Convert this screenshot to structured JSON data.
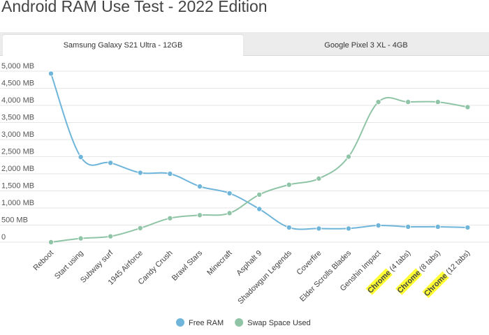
{
  "page": {
    "title": "Android RAM Use Test - 2022 Edition"
  },
  "tabs": [
    {
      "label": "Samsung Galaxy S21 Ultra - 12GB",
      "active": true
    },
    {
      "label": "Google Pixel 3 XL - 4GB",
      "active": false
    }
  ],
  "colors": {
    "free_ram": "#6fb5da",
    "swap": "#8fc4a6",
    "highlight": "#ffff33",
    "grid": "#e6e6e6"
  },
  "chart_data": {
    "type": "line",
    "title": "",
    "xlabel": "",
    "ylabel": "",
    "ylim": [
      0,
      5000
    ],
    "yticks": [
      0,
      500,
      1000,
      1500,
      2000,
      2500,
      3000,
      3500,
      4000,
      4500,
      5000
    ],
    "ytick_labels": [
      "0",
      "500 MB",
      "1,000 MB",
      "1,500 MB",
      "2,000 MB",
      "2,500 MB",
      "3,000 MB",
      "3,500 MB",
      "4,000 MB",
      "4,500 MB",
      "5,000 MB"
    ],
    "categories": [
      {
        "label": "Reboot"
      },
      {
        "label": "Start using"
      },
      {
        "label": "Subway surf"
      },
      {
        "label": "1945 Airforce"
      },
      {
        "label": "Candy Crush"
      },
      {
        "label": "Brawl Stars"
      },
      {
        "label": "Minecraft"
      },
      {
        "label": "Asphalt 9"
      },
      {
        "label": "Shadowgun Legends"
      },
      {
        "label": "Coverfire"
      },
      {
        "label": "Elder Scrolls Blades"
      },
      {
        "label": "Genshin Impact"
      },
      {
        "label": "(4 tabs)",
        "highlight": "Chrome"
      },
      {
        "label": "(8 tabs)",
        "highlight": "Chrome"
      },
      {
        "label": "(12 tabs)",
        "highlight": "Chrome"
      }
    ],
    "series": [
      {
        "name": "Free RAM",
        "color": "#6fb5da",
        "values": [
          4930,
          2490,
          2320,
          2030,
          2000,
          1630,
          1430,
          970,
          430,
          400,
          400,
          490,
          450,
          450,
          430
        ]
      },
      {
        "name": "Swap Space Used",
        "color": "#8fc4a6",
        "values": [
          0,
          110,
          170,
          410,
          700,
          790,
          850,
          1390,
          1680,
          1860,
          2500,
          4100,
          4100,
          4100,
          3950
        ]
      }
    ],
    "grid": true,
    "legend": "bottom"
  }
}
